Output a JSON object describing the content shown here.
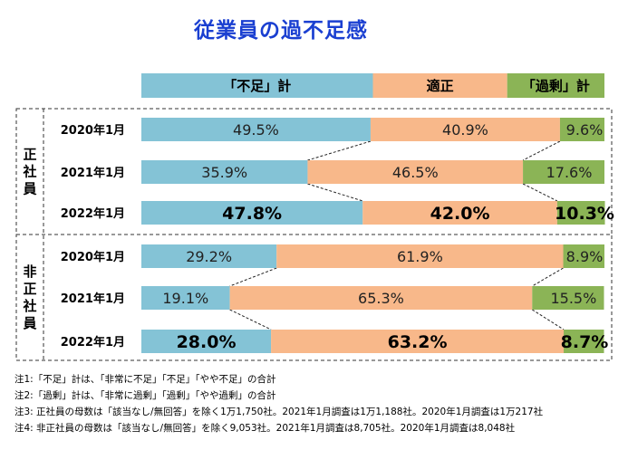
{
  "chart_data": {
    "type": "bar",
    "orientation": "horizontal",
    "stacked": "100%",
    "title": "従業員の過不足感",
    "legend": [
      {
        "name": "「不足」計",
        "color": "#84c3d6"
      },
      {
        "name": "適正",
        "color": "#f8b88a"
      },
      {
        "name": "「過剰」計",
        "color": "#8bb456"
      }
    ],
    "groups": [
      {
        "label": "正社員",
        "rows": [
          {
            "label": "2020年1月",
            "values": [
              49.5,
              40.9,
              9.6
            ],
            "labels": [
              "49.5%",
              "40.9%",
              "9.6%"
            ],
            "bold": false
          },
          {
            "label": "2021年1月",
            "values": [
              35.9,
              46.5,
              17.6
            ],
            "labels": [
              "35.9%",
              "46.5%",
              "17.6%"
            ],
            "bold": false
          },
          {
            "label": "2022年1月",
            "values": [
              47.8,
              42.0,
              10.3
            ],
            "labels": [
              "47.8%",
              "42.0%",
              "10.3%"
            ],
            "bold": true
          }
        ]
      },
      {
        "label": "非正社員",
        "rows": [
          {
            "label": "2020年1月",
            "values": [
              29.2,
              61.9,
              8.9
            ],
            "labels": [
              "29.2%",
              "61.9%",
              "8.9%"
            ],
            "bold": false
          },
          {
            "label": "2021年1月",
            "values": [
              19.1,
              65.3,
              15.5
            ],
            "labels": [
              "19.1%",
              "65.3%",
              "15.5%"
            ],
            "bold": false
          },
          {
            "label": "2022年1月",
            "values": [
              28.0,
              63.2,
              8.7
            ],
            "labels": [
              "28.0%",
              "63.2%",
              "8.7%"
            ],
            "bold": true
          }
        ]
      }
    ]
  },
  "notes": [
    "注1:「不足」計は、「非常に不足」「不足」「やや不足」の合計",
    "注2:「過剰」計は、「非常に過剰」「過剰」「やや過剰」の合計",
    "注3: 正社員の母数は「該当なし/無回答」を除く1万1,750社。2021年1月調査は1万1,188社。2020年1月調査は1万217社",
    "注4: 非正社員の母数は「該当なし/無回答」を除く9,053社。2021年1月調査は8,705社。2020年1月調査は8,048社"
  ]
}
